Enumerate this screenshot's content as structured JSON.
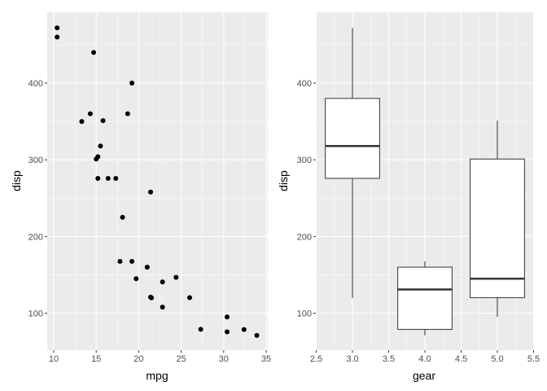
{
  "chart_data": [
    {
      "type": "scatter",
      "xlabel": "mpg",
      "ylabel": "disp",
      "xlim": [
        9.2,
        35.1
      ],
      "ylim": [
        50,
        486
      ],
      "xticks": [
        "10",
        "15",
        "20",
        "25",
        "30",
        "35"
      ],
      "yticks": [
        "100",
        "200",
        "300",
        "400"
      ],
      "grid": true,
      "points": [
        [
          21.0,
          160
        ],
        [
          21.0,
          160
        ],
        [
          22.8,
          108
        ],
        [
          21.4,
          258
        ],
        [
          18.7,
          360
        ],
        [
          18.1,
          225
        ],
        [
          14.3,
          360
        ],
        [
          24.4,
          146.7
        ],
        [
          22.8,
          140.8
        ],
        [
          19.2,
          167.6
        ],
        [
          17.8,
          167.6
        ],
        [
          16.4,
          275.8
        ],
        [
          17.3,
          275.8
        ],
        [
          15.2,
          275.8
        ],
        [
          10.4,
          472
        ],
        [
          10.4,
          460
        ],
        [
          14.7,
          440
        ],
        [
          32.4,
          78.7
        ],
        [
          30.4,
          75.7
        ],
        [
          33.9,
          71.1
        ],
        [
          21.5,
          120.1
        ],
        [
          15.5,
          318
        ],
        [
          15.2,
          304
        ],
        [
          13.3,
          350
        ],
        [
          19.2,
          400
        ],
        [
          27.3,
          79
        ],
        [
          26.0,
          120.3
        ],
        [
          30.4,
          95.1
        ],
        [
          15.8,
          351
        ],
        [
          19.7,
          145
        ],
        [
          15.0,
          301
        ],
        [
          21.4,
          121
        ]
      ]
    },
    {
      "type": "boxplot",
      "xlabel": "gear",
      "ylabel": "disp",
      "xlim": [
        2.5,
        5.5
      ],
      "ylim": [
        50,
        486
      ],
      "xticks": [
        "2.5",
        "3.0",
        "3.5",
        "4.0",
        "4.5",
        "5.0",
        "5.5"
      ],
      "yticks": [
        "100",
        "200",
        "300",
        "400"
      ],
      "grid": true,
      "boxes": [
        {
          "x": 3,
          "min": 120.1,
          "q1": 275.8,
          "median": 318,
          "q3": 380,
          "max": 472
        },
        {
          "x": 4,
          "min": 71.1,
          "q1": 78.9,
          "median": 130.9,
          "q3": 160,
          "max": 167.6
        },
        {
          "x": 5,
          "min": 95.1,
          "q1": 120.3,
          "median": 145,
          "q3": 301,
          "max": 351
        }
      ]
    }
  ]
}
